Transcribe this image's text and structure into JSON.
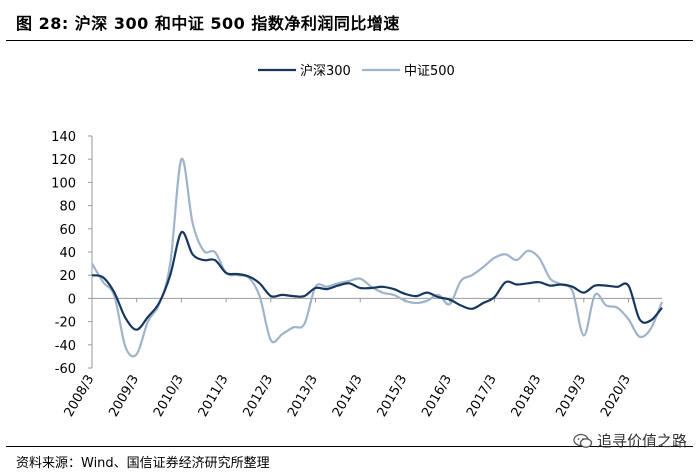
{
  "header": {
    "title": "图 28:  沪深 300 和中证 500 指数净利润同比增速"
  },
  "footer": {
    "source": "资料来源：Wind、国信证券经济研究所整理",
    "watermark": "追寻价值之路",
    "watermark_icon": "wechat-icon"
  },
  "colors": {
    "series1": "#17375e",
    "series2": "#9fb4cb"
  },
  "chart_data": {
    "type": "line",
    "title": "",
    "xlabel": "",
    "ylabel": "",
    "ylim": [
      -60,
      140
    ],
    "yticks": [
      -60,
      -40,
      -20,
      0,
      20,
      40,
      60,
      80,
      100,
      120,
      140
    ],
    "xlim": [
      2008.0,
      2020.75
    ],
    "x_tick_labels": [
      "2008/3",
      "2009/3",
      "2010/3",
      "2011/3",
      "2012/3",
      "2013/3",
      "2014/3",
      "2015/3",
      "2016/3",
      "2017/3",
      "2018/3",
      "2019/3",
      "2020/3"
    ],
    "x_tick_values": [
      2008.0,
      2009.0,
      2010.0,
      2011.0,
      2012.0,
      2013.0,
      2014.0,
      2015.0,
      2016.0,
      2017.0,
      2018.0,
      2019.0,
      2020.0
    ],
    "legend_position": "top-center",
    "series": [
      {
        "name": "沪深300",
        "x": [
          2008.0,
          2008.25,
          2008.5,
          2008.75,
          2009.0,
          2009.25,
          2009.5,
          2009.75,
          2010.0,
          2010.25,
          2010.5,
          2010.75,
          2011.0,
          2011.25,
          2011.5,
          2011.75,
          2012.0,
          2012.25,
          2012.5,
          2012.75,
          2013.0,
          2013.25,
          2013.5,
          2013.75,
          2014.0,
          2014.25,
          2014.5,
          2014.75,
          2015.0,
          2015.25,
          2015.5,
          2015.75,
          2016.0,
          2016.25,
          2016.5,
          2016.75,
          2017.0,
          2017.25,
          2017.5,
          2017.75,
          2018.0,
          2018.25,
          2018.5,
          2018.75,
          2019.0,
          2019.25,
          2019.5,
          2019.75,
          2020.0,
          2020.25,
          2020.5,
          2020.75
        ],
        "values": [
          20,
          18,
          5,
          -17,
          -27,
          -16,
          -4,
          20,
          57,
          38,
          33,
          33,
          22,
          21,
          19,
          13,
          2,
          3,
          2,
          2,
          9,
          8,
          11,
          13,
          9,
          9,
          10,
          8,
          4,
          2,
          5,
          1,
          -1,
          -6,
          -9,
          -4,
          1,
          14,
          12,
          13,
          14,
          11,
          12,
          10,
          5,
          11,
          11,
          10,
          11,
          -18,
          -19,
          -8
        ]
      },
      {
        "name": "中证500",
        "x": [
          2008.0,
          2008.25,
          2008.5,
          2008.75,
          2009.0,
          2009.25,
          2009.5,
          2009.75,
          2010.0,
          2010.25,
          2010.5,
          2010.75,
          2011.0,
          2011.25,
          2011.5,
          2011.75,
          2012.0,
          2012.25,
          2012.5,
          2012.75,
          2013.0,
          2013.25,
          2013.5,
          2013.75,
          2014.0,
          2014.25,
          2014.5,
          2014.75,
          2015.0,
          2015.25,
          2015.5,
          2015.75,
          2016.0,
          2016.25,
          2016.5,
          2016.75,
          2017.0,
          2017.25,
          2017.5,
          2017.75,
          2018.0,
          2018.25,
          2018.5,
          2018.75,
          2019.0,
          2019.25,
          2019.5,
          2019.75,
          2020.0,
          2020.25,
          2020.5,
          2020.75
        ],
        "values": [
          30,
          14,
          2,
          -42,
          -48,
          -20,
          -5,
          30,
          120,
          65,
          41,
          40,
          22,
          20,
          18,
          2,
          -36,
          -31,
          -25,
          -22,
          10,
          10,
          13,
          15,
          17,
          10,
          5,
          3,
          -2,
          -4,
          -2,
          3,
          -5,
          15,
          20,
          27,
          35,
          38,
          33,
          41,
          35,
          17,
          12,
          6,
          -32,
          3,
          -6,
          -8,
          -18,
          -33,
          -26,
          -3
        ]
      }
    ]
  }
}
